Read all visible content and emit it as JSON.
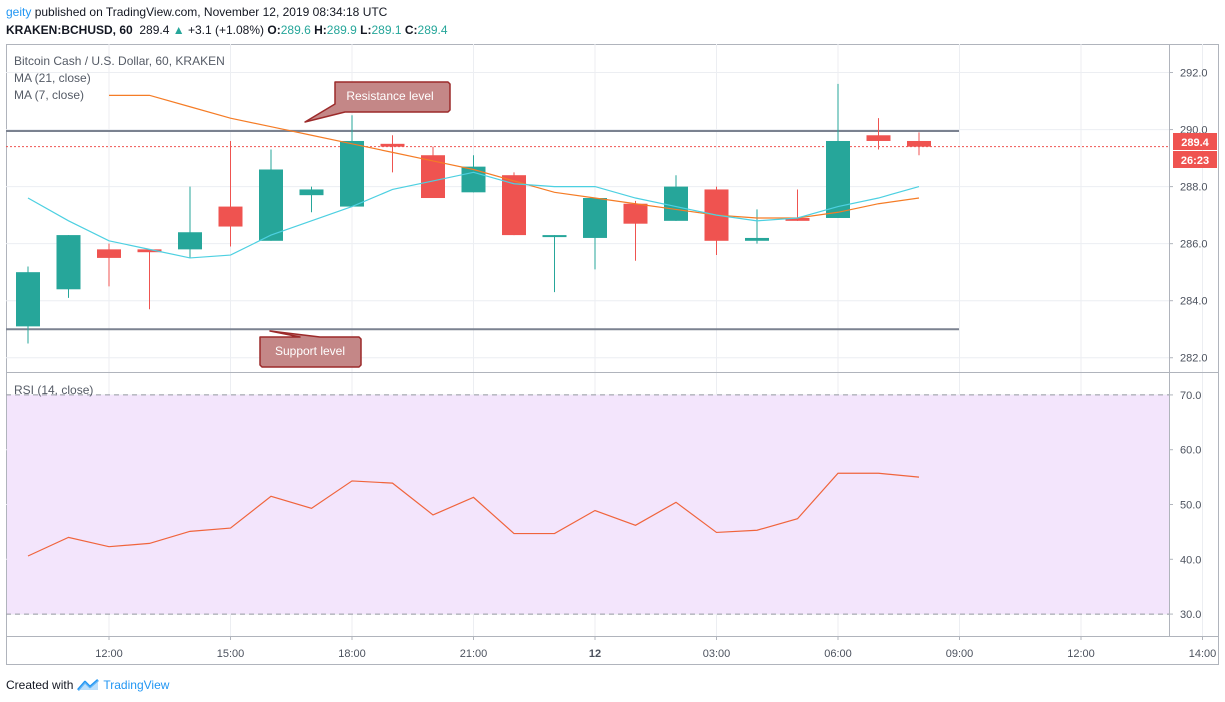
{
  "header": {
    "user": "geity",
    "published_text": " published on TradingView.com, November 12, 2019 08:34:18 UTC",
    "symbol": "KRAKEN:BCHUSD, 60",
    "last": "289.4",
    "change_arrow": "▲",
    "change": "+3.1 (+1.08%)",
    "o_label": "O:",
    "o": "289.6",
    "h_label": "H:",
    "h": "289.9",
    "l_label": "L:",
    "l": "289.1",
    "c_label": "C:",
    "c": "289.4"
  },
  "legend": {
    "title": "Bitcoin Cash / U.S. Dollar, 60, KRAKEN",
    "ma21": "MA (21, close)",
    "ma7": "MA (7, close)",
    "rsi": "RSI (14, close)"
  },
  "annotations": {
    "resistance": "Resistance level",
    "support": "Support level",
    "price_tag": "289.4",
    "countdown": "26:23"
  },
  "footer": {
    "created": "Created with",
    "brand": "TradingView"
  },
  "colors": {
    "up": "#26a69a",
    "down": "#ef5350",
    "ma21": "#f57c26",
    "ma7": "#4dd0e1",
    "rsi_line": "#f0643c",
    "rsi_band": "#f3e5fc",
    "callout_fill": "#c48787",
    "callout_stroke": "#9c2a2a",
    "level_line": "#7b8290"
  },
  "chart_data": [
    {
      "type": "candlestick",
      "title": "Bitcoin Cash / U.S. Dollar, 60, KRAKEN",
      "x_ticks": [
        "12:00",
        "15:00",
        "18:00",
        "21:00",
        "12",
        "03:00",
        "06:00",
        "09:00",
        "12:00",
        "14:00"
      ],
      "x_tick_index": [
        2,
        5,
        8,
        11,
        14,
        17,
        20,
        23,
        26,
        29
      ],
      "y_ticks": [
        282.0,
        284.0,
        286.0,
        288.0,
        290.0,
        292.0
      ],
      "ylim": [
        281.5,
        293.0
      ],
      "candles": [
        {
          "o": 283.1,
          "h": 285.2,
          "l": 282.5,
          "c": 285.0
        },
        {
          "o": 284.4,
          "h": 286.3,
          "l": 284.1,
          "c": 286.3
        },
        {
          "o": 285.8,
          "h": 286.0,
          "l": 284.5,
          "c": 285.5
        },
        {
          "o": 285.8,
          "h": 285.8,
          "l": 283.7,
          "c": 285.7
        },
        {
          "o": 285.8,
          "h": 288.0,
          "l": 285.5,
          "c": 286.4
        },
        {
          "o": 287.3,
          "h": 289.6,
          "l": 285.9,
          "c": 286.6
        },
        {
          "o": 286.1,
          "h": 289.3,
          "l": 286.1,
          "c": 288.6
        },
        {
          "o": 287.7,
          "h": 288.0,
          "l": 287.1,
          "c": 287.9
        },
        {
          "o": 287.3,
          "h": 290.5,
          "l": 287.3,
          "c": 289.6
        },
        {
          "o": 289.5,
          "h": 289.8,
          "l": 288.5,
          "c": 289.4
        },
        {
          "o": 289.1,
          "h": 289.4,
          "l": 287.6,
          "c": 287.6
        },
        {
          "o": 287.8,
          "h": 289.1,
          "l": 287.8,
          "c": 288.7
        },
        {
          "o": 288.4,
          "h": 288.5,
          "l": 286.3,
          "c": 286.3
        },
        {
          "o": 286.3,
          "h": 286.3,
          "l": 284.3,
          "c": 286.3
        },
        {
          "o": 286.2,
          "h": 287.6,
          "l": 285.1,
          "c": 287.6
        },
        {
          "o": 287.4,
          "h": 287.5,
          "l": 285.4,
          "c": 286.7
        },
        {
          "o": 286.8,
          "h": 288.4,
          "l": 286.8,
          "c": 288.0
        },
        {
          "o": 287.9,
          "h": 288.0,
          "l": 285.6,
          "c": 286.1
        },
        {
          "o": 286.1,
          "h": 287.2,
          "l": 286.0,
          "c": 286.2
        },
        {
          "o": 286.9,
          "h": 287.9,
          "l": 286.8,
          "c": 286.8
        },
        {
          "o": 286.9,
          "h": 291.6,
          "l": 286.9,
          "c": 289.6
        },
        {
          "o": 289.8,
          "h": 290.4,
          "l": 289.3,
          "c": 289.6
        },
        {
          "o": 289.6,
          "h": 289.9,
          "l": 289.1,
          "c": 289.4
        }
      ],
      "series": [
        {
          "name": "MA (21, close)",
          "values": [
            null,
            null,
            291.2,
            291.2,
            290.8,
            290.4,
            290.1,
            289.8,
            289.5,
            289.2,
            288.9,
            288.6,
            288.2,
            287.8,
            287.6,
            287.4,
            287.2,
            287.0,
            286.9,
            286.9,
            287.1,
            287.4,
            287.6
          ]
        },
        {
          "name": "MA (7, close)",
          "values": [
            287.6,
            286.8,
            286.1,
            285.8,
            285.5,
            285.6,
            286.3,
            286.8,
            287.3,
            287.9,
            288.2,
            288.5,
            288.1,
            288.0,
            288.0,
            287.6,
            287.3,
            287.0,
            286.8,
            286.9,
            287.3,
            287.6,
            288.0
          ]
        }
      ],
      "levels": [
        {
          "name": "Resistance level",
          "value": 289.95
        },
        {
          "name": "Support level",
          "value": 283.0
        }
      ],
      "last_price": 289.4
    },
    {
      "type": "line",
      "title": "RSI (14, close)",
      "y_ticks": [
        30.0,
        40.0,
        50.0,
        60.0,
        70.0
      ],
      "ylim": [
        26,
        74
      ],
      "band": [
        30,
        70
      ],
      "values": [
        40.6,
        44.0,
        42.3,
        42.9,
        45.1,
        45.7,
        51.5,
        49.3,
        54.3,
        53.9,
        48.1,
        51.3,
        44.7,
        44.7,
        48.9,
        46.2,
        50.4,
        44.9,
        45.3,
        47.4,
        55.7,
        55.7,
        55.0
      ]
    }
  ]
}
